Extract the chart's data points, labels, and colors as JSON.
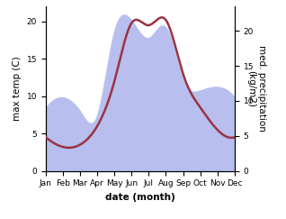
{
  "months": [
    "Jan",
    "Feb",
    "Mar",
    "Apr",
    "May",
    "Jun",
    "Jul",
    "Aug",
    "Sep",
    "Oct",
    "Nov",
    "Dec"
  ],
  "temp_values": [
    4.5,
    3.2,
    3.5,
    6.0,
    12.0,
    19.8,
    19.5,
    20.2,
    13.0,
    8.5,
    5.5,
    4.5
  ],
  "precip_values": [
    9.0,
    10.5,
    8.5,
    8.0,
    20.0,
    21.5,
    19.0,
    20.5,
    13.0,
    11.5,
    12.0,
    10.5
  ],
  "temp_color": "#993344",
  "precip_fill_color": "#b8bfee",
  "temp_ylim": [
    0,
    22
  ],
  "precip_ylim": [
    0,
    23.5
  ],
  "temp_yticks": [
    0,
    5,
    10,
    15,
    20
  ],
  "precip_yticks": [
    0,
    5,
    10,
    15,
    20
  ],
  "xlabel": "date (month)",
  "ylabel_left": "max temp (C)",
  "ylabel_right": "med. precipitation\n(kg/m2)",
  "background_color": "#ffffff",
  "line_width": 1.8,
  "fill_alpha": 1.0,
  "tick_fontsize": 6.5,
  "label_fontsize": 7.5
}
